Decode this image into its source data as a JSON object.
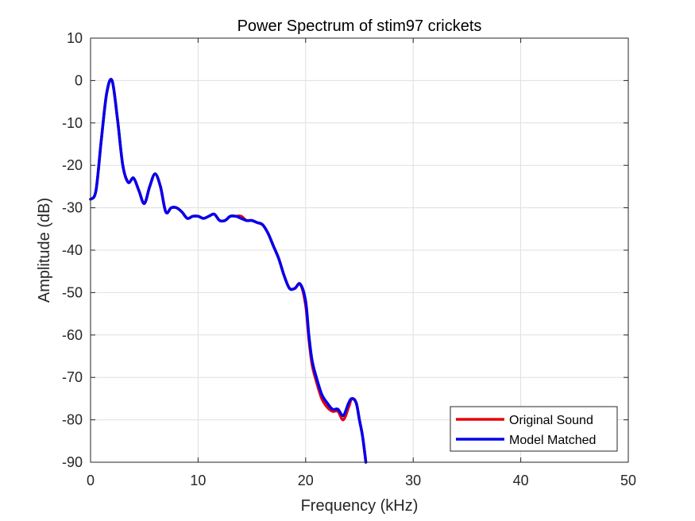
{
  "chart_data": {
    "type": "line",
    "title": "Power Spectrum of stim97 crickets",
    "xlabel": "Frequency (kHz)",
    "ylabel": "Amplitude (dB)",
    "xlim": [
      0,
      50
    ],
    "ylim": [
      -90,
      10
    ],
    "xticks": [
      0,
      10,
      20,
      30,
      40,
      50
    ],
    "yticks": [
      10,
      0,
      -10,
      -20,
      -30,
      -40,
      -50,
      -60,
      -70,
      -80,
      -90
    ],
    "grid": true,
    "legend_position": "bottom-right",
    "series": [
      {
        "name": "Original Sound",
        "color": "#e8000b",
        "x": [
          0,
          0.5,
          1.0,
          1.5,
          2.0,
          2.5,
          3.0,
          3.5,
          4.0,
          4.5,
          5.0,
          5.5,
          6.0,
          6.5,
          7.0,
          7.5,
          8.0,
          8.5,
          9.0,
          9.5,
          10.0,
          10.5,
          11.0,
          11.5,
          12.0,
          12.5,
          13.0,
          13.5,
          14.0,
          14.5,
          15.0,
          15.5,
          16.0,
          16.5,
          17.0,
          17.5,
          18.0,
          18.5,
          19.0,
          19.5,
          20.0,
          20.3,
          20.6,
          21.0,
          21.5,
          22.0,
          22.5,
          23.0,
          23.5,
          24.0,
          24.3,
          24.7,
          25.0,
          25.3,
          25.6
        ],
        "y": [
          -28,
          -26,
          -14,
          -3,
          0,
          -9,
          -20,
          -24,
          -23,
          -26,
          -29,
          -25,
          -22,
          -25,
          -31,
          -30,
          -30,
          -31,
          -32.5,
          -32,
          -32,
          -32.5,
          -32,
          -31.5,
          -33,
          -33,
          -32,
          -32,
          -32,
          -33,
          -33,
          -33.5,
          -34,
          -36,
          -39,
          -42,
          -46,
          -49,
          -49,
          -48,
          -53,
          -61,
          -67,
          -71,
          -75,
          -77,
          -78,
          -78,
          -80,
          -77,
          -75,
          -76,
          -80,
          -84,
          -90
        ]
      },
      {
        "name": "Model Matched",
        "color": "#0000ee",
        "x": [
          0,
          0.5,
          1.0,
          1.5,
          2.0,
          2.5,
          3.0,
          3.5,
          4.0,
          4.5,
          5.0,
          5.5,
          6.0,
          6.5,
          7.0,
          7.5,
          8.0,
          8.5,
          9.0,
          9.5,
          10.0,
          10.5,
          11.0,
          11.5,
          12.0,
          12.5,
          13.0,
          13.5,
          14.0,
          14.5,
          15.0,
          15.5,
          16.0,
          16.5,
          17.0,
          17.5,
          18.0,
          18.5,
          19.0,
          19.5,
          20.0,
          20.3,
          20.6,
          21.0,
          21.5,
          22.0,
          22.5,
          23.0,
          23.5,
          24.0,
          24.3,
          24.7,
          25.0,
          25.3,
          25.6
        ],
        "y": [
          -28,
          -26,
          -14,
          -3,
          0,
          -9,
          -20,
          -24,
          -23,
          -26,
          -29,
          -25,
          -22,
          -25,
          -31,
          -30,
          -30,
          -31,
          -32.5,
          -32,
          -32,
          -32.5,
          -32,
          -31.5,
          -33,
          -33,
          -32,
          -32,
          -32.5,
          -33,
          -33,
          -33.5,
          -34,
          -36,
          -39,
          -42,
          -46,
          -49,
          -49,
          -48,
          -52,
          -60,
          -66,
          -70,
          -74,
          -76,
          -77.5,
          -77.5,
          -79,
          -76,
          -75,
          -76,
          -80,
          -84,
          -90
        ]
      }
    ]
  }
}
